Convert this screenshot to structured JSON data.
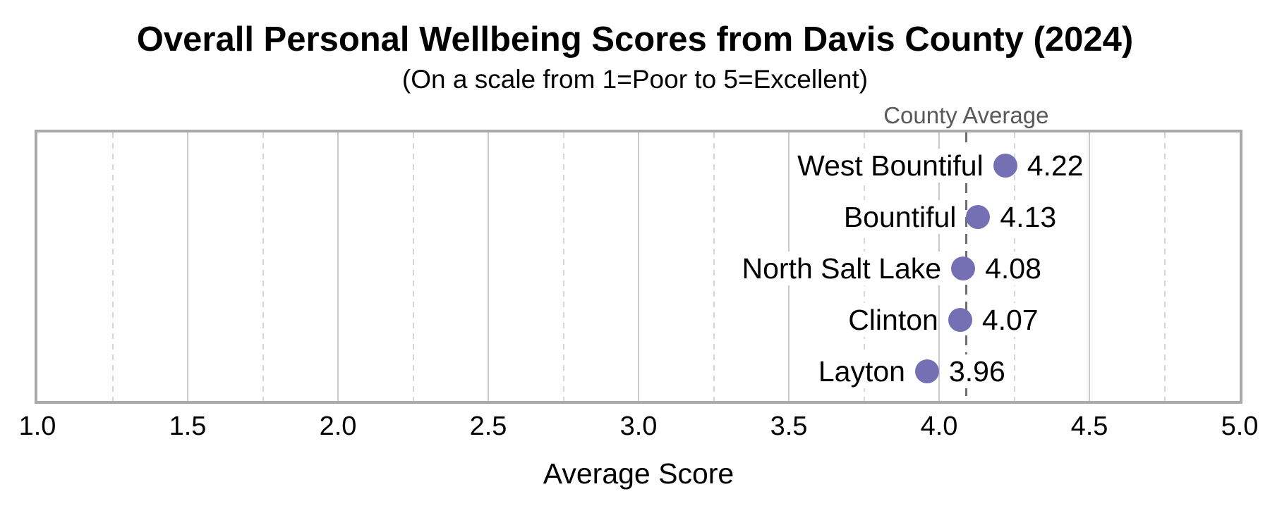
{
  "chart_data": {
    "type": "scatter",
    "variant": "horizontal-dot-plot",
    "title": "Overall Personal Wellbeing Scores from Davis County (2024)",
    "subtitle": "(On a scale from 1=Poor to 5=Excellent)",
    "xlabel": "Average Score",
    "categories": [
      "West Bountiful",
      "Bountiful",
      "North Salt Lake",
      "Clinton",
      "Layton"
    ],
    "values": [
      4.22,
      4.13,
      4.08,
      4.07,
      3.96
    ],
    "value_labels": [
      "4.22",
      "4.13",
      "4.08",
      "4.07",
      "3.96"
    ],
    "xlim": [
      1.0,
      5.0
    ],
    "xticks": [
      1.0,
      1.5,
      2.0,
      2.5,
      3.0,
      3.5,
      4.0,
      4.5,
      5.0
    ],
    "xtick_labels": [
      "1.0",
      "1.5",
      "2.0",
      "2.5",
      "3.0",
      "3.5",
      "4.0",
      "4.5",
      "5.0"
    ],
    "grid": {
      "major_step": 0.5,
      "major_style": "solid",
      "minor_step": 0.25,
      "minor_style": "dashed"
    },
    "legend": "none",
    "reference_line": {
      "label": "County Average",
      "value": 4.09,
      "style": "dashed"
    },
    "colors": {
      "dot": "#7570b3",
      "reference_line": "#6e6e6e",
      "reference_label": "#595959",
      "grid_major": "#c9c9c9",
      "grid_minor": "#d6d6d6",
      "plot_border": "#a9a9a9",
      "text": "#000000"
    }
  }
}
